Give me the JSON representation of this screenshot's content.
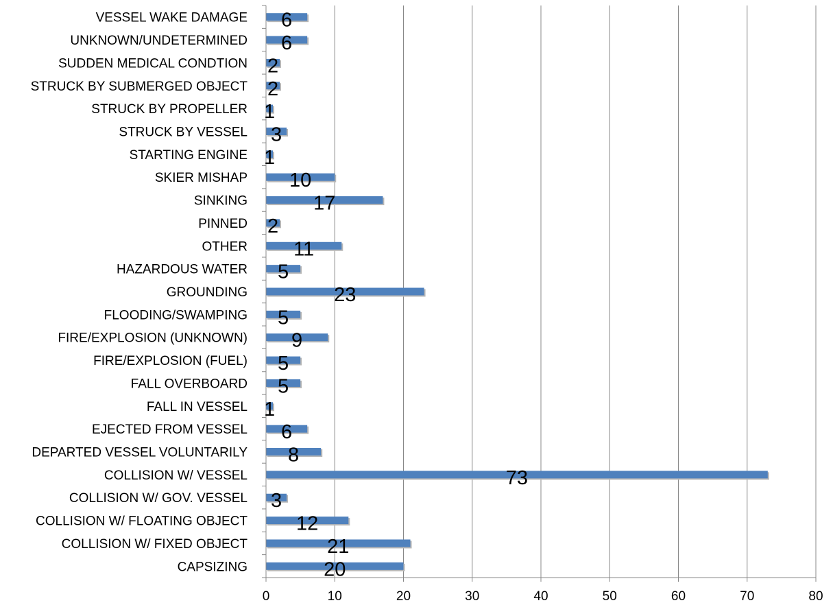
{
  "chart_data": {
    "type": "bar",
    "orientation": "horizontal",
    "categories": [
      "CAPSIZING",
      "COLLISION W/ FIXED OBJECT",
      "COLLISION W/ FLOATING OBJECT",
      "COLLISION W/ GOV. VESSEL",
      "COLLISION W/ VESSEL",
      "DEPARTED VESSEL VOLUNTARILY",
      "EJECTED FROM VESSEL",
      "FALL IN VESSEL",
      "FALL OVERBOARD",
      "FIRE/EXPLOSION (FUEL)",
      "FIRE/EXPLOSION (UNKNOWN)",
      "FLOODING/SWAMPING",
      "GROUNDING",
      "HAZARDOUS WATER",
      "OTHER",
      "PINNED",
      "SINKING",
      "SKIER MISHAP",
      "STARTING ENGINE",
      "STRUCK BY VESSEL",
      "STRUCK BY PROPELLER",
      "STRUCK BY SUBMERGED OBJECT",
      "SUDDEN MEDICAL CONDTION",
      "UNKNOWN/UNDETERMINED",
      "VESSEL WAKE DAMAGE"
    ],
    "values": [
      20,
      21,
      12,
      3,
      73,
      8,
      6,
      1,
      5,
      5,
      9,
      5,
      23,
      5,
      11,
      2,
      17,
      10,
      1,
      3,
      1,
      2,
      2,
      6,
      6
    ],
    "xlim": [
      0,
      80
    ],
    "xticks": [
      0,
      10,
      20,
      30,
      40,
      50,
      60,
      70,
      80
    ],
    "grid": "vertical",
    "legend": "none",
    "bar_color": "#4f81bd",
    "grid_color": "#888888"
  }
}
